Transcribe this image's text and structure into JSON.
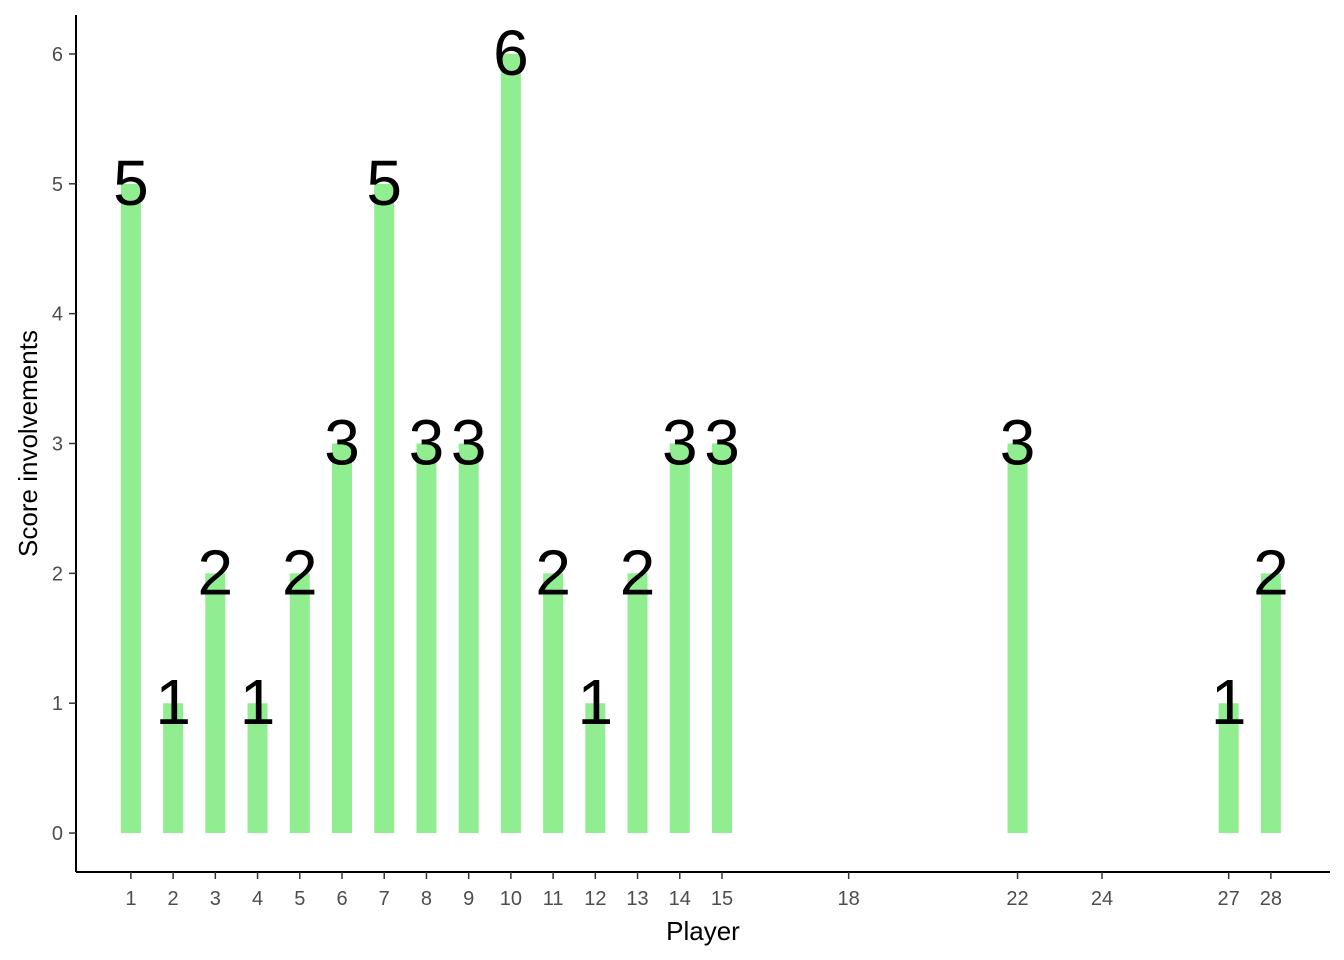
{
  "chart_data": {
    "type": "bar",
    "title": "",
    "xlabel": "Player",
    "ylabel": "Score involvements",
    "bar_color": "#90EE90",
    "x_tick_color": "#8B4513",
    "x_ticks": [
      1,
      2,
      3,
      4,
      5,
      6,
      7,
      8,
      9,
      10,
      11,
      12,
      13,
      14,
      15,
      18,
      22,
      24,
      27,
      28
    ],
    "y_ticks": [
      0,
      1,
      2,
      3,
      4,
      5,
      6
    ],
    "xlim": [
      -0.3,
      29.4
    ],
    "ylim": [
      -0.3,
      6.3
    ],
    "grid": false,
    "legend": "none",
    "x": [
      1,
      2,
      3,
      4,
      5,
      6,
      7,
      8,
      9,
      10,
      11,
      12,
      13,
      14,
      15,
      22,
      27,
      28
    ],
    "values": [
      5,
      1,
      2,
      1,
      2,
      3,
      5,
      3,
      3,
      6,
      2,
      1,
      2,
      3,
      3,
      3,
      1,
      2
    ]
  }
}
